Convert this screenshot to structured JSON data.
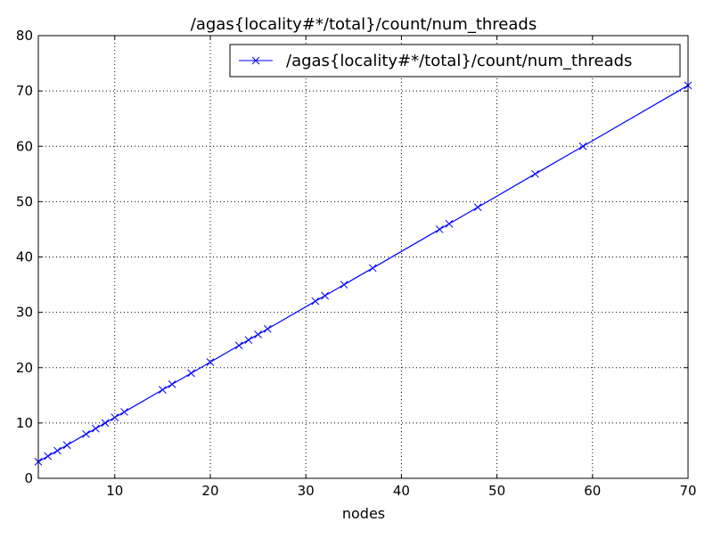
{
  "chart_data": {
    "type": "line",
    "title": "/agas{locality#*/total}/count/num_threads",
    "xlabel": "nodes",
    "ylabel": "",
    "xlim": [
      2,
      70
    ],
    "ylim": [
      0,
      80
    ],
    "xticks": [
      10,
      20,
      30,
      40,
      50,
      60,
      70
    ],
    "yticks": [
      0,
      10,
      20,
      30,
      40,
      50,
      60,
      70,
      80
    ],
    "grid": true,
    "legend_position": "top-right",
    "series": [
      {
        "name": "/agas{locality#*/total}/count/num_threads",
        "color": "#0000ff",
        "marker": "x",
        "x": [
          2,
          3,
          4,
          5,
          7,
          8,
          9,
          10,
          11,
          15,
          16,
          18,
          20,
          23,
          24,
          25,
          26,
          31,
          32,
          34,
          37,
          44,
          45,
          48,
          54,
          59,
          70
        ],
        "y": [
          3,
          4,
          5,
          6,
          8,
          9,
          10,
          11,
          12,
          16,
          17,
          19,
          21,
          24,
          25,
          26,
          27,
          32,
          33,
          35,
          38,
          45,
          46,
          49,
          55,
          60,
          71
        ]
      }
    ]
  }
}
